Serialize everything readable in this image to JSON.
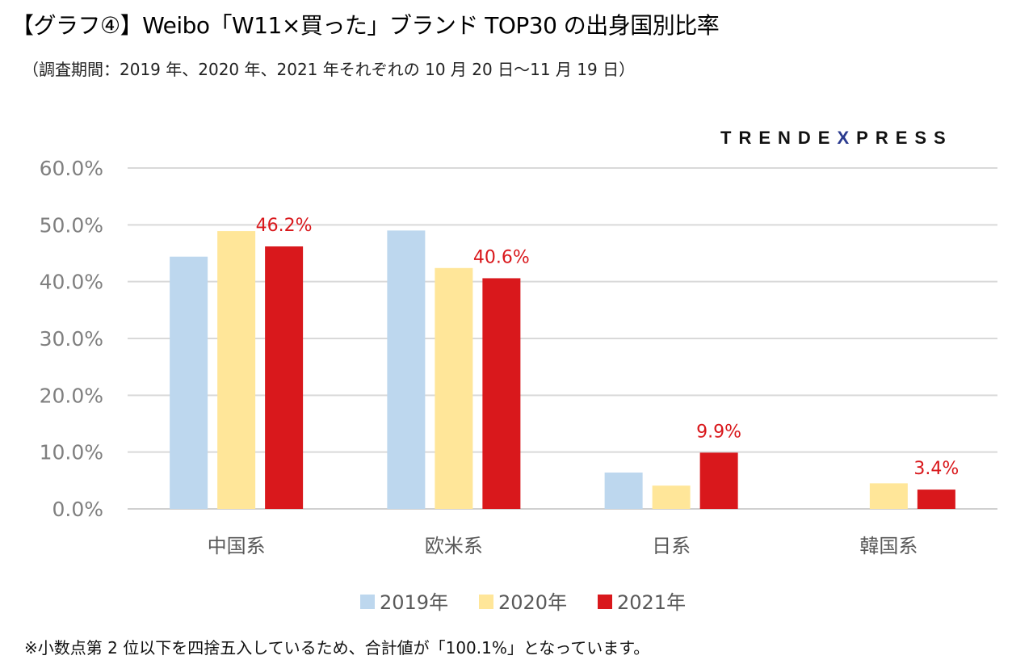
{
  "header": {
    "title": "【グラフ④】Weibo「W11×買った」ブランド TOP30 の出身国別比率",
    "subtitle": "（調査期間：2019 年、2020 年、2021 年それぞれの 10 月 20 日〜11 月 19 日）"
  },
  "logo": {
    "part1": "TRENDE",
    "part2": "X",
    "part3": "PRESS"
  },
  "footnote": "※小数点第 2 位以下を四捨五入しているため、合計値が「100.1%」となっています。",
  "chart_data": {
    "type": "bar",
    "title": "Weibo「W11×買った」ブランド TOP30 の出身国別比率",
    "categories": [
      "中国系",
      "欧米系",
      "日系",
      "韓国系"
    ],
    "series": [
      {
        "name": "2019年",
        "color": "#bdd7ee",
        "values": [
          44.4,
          49.0,
          6.4,
          0.0
        ]
      },
      {
        "name": "2020年",
        "color": "#ffe699",
        "values": [
          48.9,
          42.4,
          4.1,
          4.5
        ]
      },
      {
        "name": "2021年",
        "color": "#d9181c",
        "values": [
          46.2,
          40.6,
          9.9,
          3.4
        ]
      }
    ],
    "data_labels": {
      "series": "2021年",
      "labels": [
        "46.2%",
        "40.6%",
        "9.9%",
        "3.4%"
      ]
    },
    "ylim": [
      0,
      60
    ],
    "yticks": [
      "0.0%",
      "10.0%",
      "20.0%",
      "30.0%",
      "40.0%",
      "50.0%",
      "60.0%"
    ],
    "grid": true,
    "legend": "bottom",
    "xlabel": "",
    "ylabel": ""
  }
}
